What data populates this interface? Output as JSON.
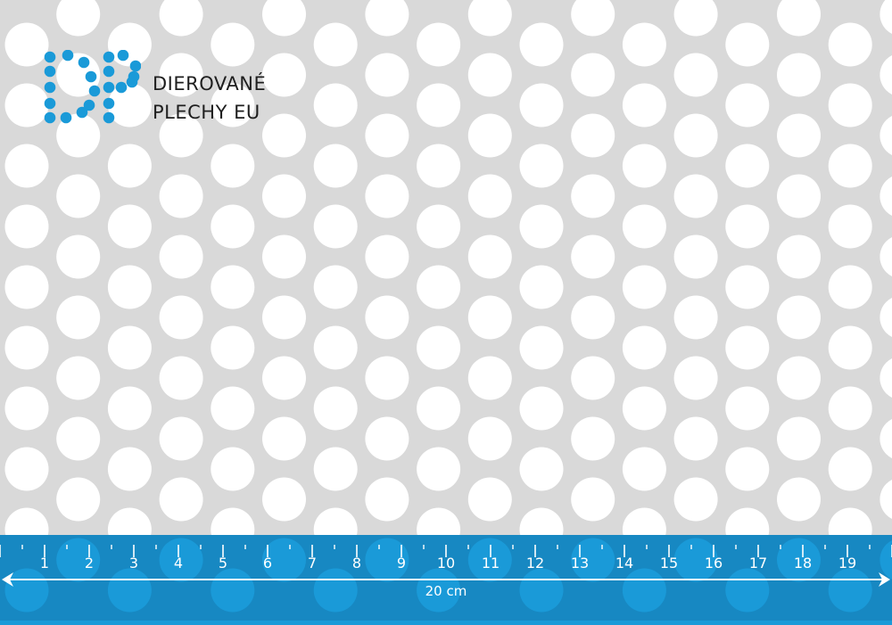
{
  "logo": {
    "line1": "DIEROVANÉ",
    "line2": "PLECHY EU",
    "mark": "DP",
    "color": "#1a9ad8"
  },
  "ruler": {
    "numbers": [
      "1",
      "2",
      "3",
      "4",
      "5",
      "6",
      "7",
      "8",
      "9",
      "10",
      "11",
      "12",
      "13",
      "14",
      "15",
      "16",
      "17",
      "18",
      "19"
    ],
    "length_label": "20 cm",
    "color": "#1a9ad8"
  },
  "sheet": {
    "metal_color": "#d9d9d9",
    "hole_color": "#ffffff"
  }
}
